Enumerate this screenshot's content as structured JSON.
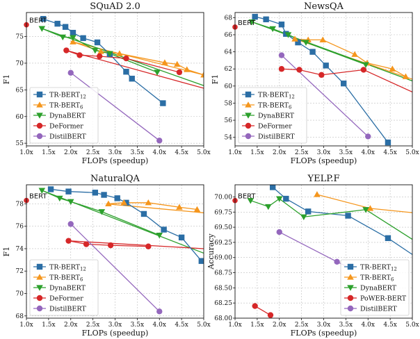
{
  "colors": {
    "blue": "#2b6ea5",
    "orange": "#f5961d",
    "green": "#2ca02c",
    "red": "#d62728",
    "purple": "#9467bd"
  },
  "chart_data": [
    {
      "type": "line",
      "title": "SQuAD 2.0",
      "xlabel": "FLOPs (speedup)",
      "ylabel": "F1",
      "xlim": [
        1.0,
        5.0
      ],
      "ylim": [
        54.5,
        79.5
      ],
      "xticks": [
        1.0,
        1.5,
        2.0,
        2.5,
        3.0,
        3.5,
        4.0,
        4.5,
        5.0
      ],
      "xtick_labels": [
        "1.0x",
        "1.5x",
        "2.0x",
        "2.5x",
        "3.0x",
        "3.5x",
        "4.0x",
        "4.5x",
        "5.0x"
      ],
      "yticks": [
        55,
        60,
        65,
        70,
        75
      ],
      "ytick_labels": [
        "55",
        "60",
        "65",
        "70",
        "75"
      ],
      "grid": true,
      "legend_position": "bottom-left",
      "reference": {
        "label": "BERT",
        "x": 1.0,
        "y": 77.2
      },
      "series": [
        {
          "name_main": "TR-BERT",
          "name_sub": "12",
          "color": "blue",
          "marker": "square",
          "x": [
            1.38,
            1.7,
            1.88,
            2.05,
            2.28,
            2.6,
            2.88,
            3.25,
            3.38,
            4.08
          ],
          "y": [
            78.3,
            77.4,
            76.8,
            75.7,
            74.7,
            73.9,
            71.7,
            68.4,
            67.1,
            62.5
          ]
        },
        {
          "name_main": "TR-BERT",
          "name_sub": "6",
          "color": "orange",
          "marker": "triangle",
          "x": [
            2.05,
            2.68,
            3.1,
            4.12,
            4.4,
            4.62,
            5.0
          ],
          "y": [
            74.0,
            72.2,
            71.8,
            70.1,
            69.8,
            68.8,
            67.8
          ]
        },
        {
          "name_main": "DynaBERT",
          "name_sub": "",
          "color": "green",
          "marker": "triangle-down",
          "x": [
            1.35,
            1.82,
            2.05,
            2.55,
            2.88,
            3.95
          ],
          "y": [
            76.5,
            74.9,
            74.8,
            72.4,
            71.8,
            68.3
          ]
        },
        {
          "name_main": "DeFormer",
          "name_sub": "",
          "color": "red",
          "marker": "circle",
          "x": [
            1.9,
            2.2,
            2.65,
            3.25,
            4.45
          ],
          "y": [
            72.4,
            71.5,
            71.3,
            70.9,
            68.3
          ]
        },
        {
          "name_main": "DistilBERT",
          "name_sub": "",
          "color": "purple",
          "marker": "circle",
          "x": [
            2.0,
            4.0
          ],
          "y": [
            68.2,
            55.5
          ]
        }
      ],
      "trend_lines": [
        {
          "color": "orange",
          "x": [
            2.0,
            5.0
          ],
          "y": [
            74.1,
            67.8
          ]
        },
        {
          "color": "green",
          "x": [
            1.35,
            5.0
          ],
          "y": [
            76.5,
            65.8
          ]
        },
        {
          "color": "red",
          "x": [
            1.9,
            5.0
          ],
          "y": [
            72.4,
            65.3
          ]
        }
      ]
    },
    {
      "type": "line",
      "title": "NewsQA",
      "xlabel": "FLOPs (speedup)",
      "ylabel": "F1",
      "xlim": [
        1.0,
        5.0
      ],
      "ylim": [
        53.0,
        68.6
      ],
      "xticks": [
        1.0,
        1.5,
        2.0,
        2.5,
        3.0,
        3.5,
        4.0,
        4.5,
        5.0
      ],
      "xtick_labels": [
        "1.0x",
        "1.5x",
        "2.0x",
        "2.5x",
        "3.0x",
        "3.5x",
        "4.0x",
        "4.5x",
        "5.0x"
      ],
      "yticks": [
        54,
        56,
        58,
        60,
        62,
        64,
        66,
        68
      ],
      "ytick_labels": [
        "54",
        "56",
        "58",
        "60",
        "62",
        "64",
        "66",
        "68"
      ],
      "grid": true,
      "legend_position": "bottom-left",
      "reference": {
        "label": "BERT",
        "x": 1.0,
        "y": 66.9
      },
      "series": [
        {
          "name_main": "TR-BERT",
          "name_sub": "12",
          "color": "blue",
          "marker": "square",
          "x": [
            1.45,
            1.7,
            2.05,
            2.15,
            2.42,
            2.75,
            3.05,
            3.45,
            4.45
          ],
          "y": [
            68.1,
            67.8,
            67.2,
            66.1,
            65.1,
            64.0,
            62.4,
            60.3,
            53.4
          ]
        },
        {
          "name_main": "TR-BERT",
          "name_sub": "6",
          "color": "orange",
          "marker": "triangle",
          "x": [
            2.35,
            2.65,
            2.98,
            3.7,
            3.98,
            4.55,
            4.85
          ],
          "y": [
            65.5,
            65.4,
            65.4,
            63.7,
            62.7,
            62.0,
            61.1
          ]
        },
        {
          "name_main": "DynaBERT",
          "name_sub": "",
          "color": "green",
          "marker": "triangle-down",
          "x": [
            1.38,
            1.85,
            2.2,
            2.6,
            3.95
          ],
          "y": [
            67.5,
            66.7,
            66.0,
            65.1,
            62.5
          ]
        },
        {
          "name_main": "DeFormer",
          "name_sub": "",
          "color": "red",
          "marker": "circle",
          "x": [
            2.05,
            2.45,
            2.95,
            3.9
          ],
          "y": [
            62.0,
            61.9,
            61.3,
            61.9
          ]
        },
        {
          "name_main": "DistilBERT",
          "name_sub": "",
          "color": "purple",
          "marker": "circle",
          "x": [
            2.05,
            4.0
          ],
          "y": [
            63.6,
            54.1
          ]
        }
      ],
      "trend_lines": [
        {
          "color": "orange",
          "x": [
            2.3,
            5.0
          ],
          "y": [
            65.6,
            60.8
          ]
        },
        {
          "color": "green",
          "x": [
            1.38,
            5.0
          ],
          "y": [
            67.5,
            60.6
          ]
        },
        {
          "color": "red",
          "x": [
            3.9,
            5.0
          ],
          "y": [
            61.9,
            59.3
          ]
        }
      ]
    },
    {
      "type": "line",
      "title": "NaturalQA",
      "xlabel": "FLOPs (speedup)",
      "ylabel": "F1",
      "xlim": [
        1.0,
        5.0
      ],
      "ylim": [
        67.8,
        79.7
      ],
      "xticks": [
        1.0,
        1.5,
        2.0,
        2.5,
        3.0,
        3.5,
        4.0,
        4.5,
        5.0
      ],
      "xtick_labels": [
        "1.0x",
        "1.5x",
        "2.0x",
        "2.5x",
        "3.0x",
        "3.5x",
        "4.0x",
        "4.5x",
        "5.0x"
      ],
      "yticks": [
        68,
        70,
        72,
        74,
        76,
        78
      ],
      "ytick_labels": [
        "68",
        "70",
        "72",
        "74",
        "76",
        "78"
      ],
      "grid": true,
      "legend_position": "bottom-left",
      "reference": {
        "label": "BERT",
        "x": 1.0,
        "y": 78.3
      },
      "series": [
        {
          "name_main": "TR-BERT",
          "name_sub": "12",
          "color": "blue",
          "marker": "square",
          "x": [
            1.55,
            1.95,
            2.55,
            2.75,
            3.05,
            3.25,
            3.65,
            4.1,
            4.5,
            4.95
          ],
          "y": [
            79.3,
            79.1,
            79.0,
            78.8,
            78.5,
            78.1,
            77.1,
            75.7,
            75.0,
            72.9
          ]
        },
        {
          "name_main": "TR-BERT",
          "name_sub": "6",
          "color": "orange",
          "marker": "triangle",
          "x": [
            2.85,
            3.2,
            3.75,
            4.45,
            4.85
          ],
          "y": [
            78.0,
            78.1,
            78.1,
            77.7,
            77.5
          ]
        },
        {
          "name_main": "DynaBERT",
          "name_sub": "",
          "color": "green",
          "marker": "triangle-down",
          "x": [
            1.35,
            1.75,
            2.0,
            2.7,
            4.0
          ],
          "y": [
            79.2,
            78.5,
            78.2,
            77.3,
            75.2
          ]
        },
        {
          "name_main": "DeFormer",
          "name_sub": "",
          "color": "red",
          "marker": "circle",
          "x": [
            1.95,
            2.35,
            2.9,
            3.75
          ],
          "y": [
            74.7,
            74.4,
            74.3,
            74.2
          ]
        },
        {
          "name_main": "DistilBERT",
          "name_sub": "",
          "color": "purple",
          "marker": "circle",
          "x": [
            2.0,
            4.0
          ],
          "y": [
            76.2,
            68.4
          ]
        }
      ],
      "trend_lines": [
        {
          "color": "orange",
          "x": [
            2.8,
            5.0
          ],
          "y": [
            78.0,
            77.2
          ]
        },
        {
          "color": "green",
          "x": [
            1.35,
            5.0
          ],
          "y": [
            79.2,
            73.6
          ]
        },
        {
          "color": "red",
          "x": [
            1.95,
            5.0
          ],
          "y": [
            74.7,
            74.0
          ]
        }
      ]
    },
    {
      "type": "line",
      "title": "YELP.F",
      "xlabel": "FLOPs (speedup)",
      "ylabel": "Accuracy",
      "xlim": [
        1.0,
        5.0
      ],
      "ylim": [
        68.0,
        70.2
      ],
      "xticks": [
        1.0,
        1.5,
        2.0,
        2.5,
        3.0,
        3.5,
        4.0,
        4.5,
        5.0
      ],
      "xtick_labels": [
        "1.0x",
        "1.5x",
        "2.0x",
        "2.5x",
        "3.0x",
        "3.5x",
        "4.0x",
        "4.5x",
        "5.0x"
      ],
      "yticks": [
        68.0,
        68.25,
        68.5,
        68.75,
        69.0,
        69.25,
        69.5,
        69.75,
        70.0
      ],
      "ytick_labels": [
        "68.00",
        "68.25",
        "68.50",
        "68.75",
        "69.00",
        "69.25",
        "69.50",
        "69.75",
        "70.00"
      ],
      "grid": true,
      "legend_position": "bottom-right",
      "reference": {
        "label": "BERT",
        "x": 1.0,
        "y": 69.94
      },
      "series": [
        {
          "name_main": "TR-BERT",
          "name_sub": "12",
          "color": "blue",
          "marker": "square",
          "x": [
            1.85,
            2.15,
            2.65,
            3.55,
            4.45
          ],
          "y": [
            70.16,
            69.97,
            69.76,
            69.69,
            69.32
          ]
        },
        {
          "name_main": "TR-BERT",
          "name_sub": "6",
          "color": "orange",
          "marker": "triangle",
          "x": [
            2.85,
            4.05
          ],
          "y": [
            70.04,
            69.81
          ]
        },
        {
          "name_main": "DynaBERT",
          "name_sub": "",
          "color": "green",
          "marker": "triangle-down",
          "x": [
            1.35,
            1.75,
            2.0,
            2.55,
            3.95
          ],
          "y": [
            69.94,
            69.84,
            69.97,
            69.67,
            69.79
          ]
        },
        {
          "name_main": "PoWER-BERT",
          "name_sub": "",
          "color": "red",
          "marker": "circle",
          "x": [
            1.45,
            1.8
          ],
          "y": [
            68.2,
            68.05
          ]
        },
        {
          "name_main": "DistilBERT",
          "name_sub": "",
          "color": "purple",
          "marker": "circle",
          "x": [
            2.0,
            3.3
          ],
          "y": [
            69.42,
            68.93
          ]
        }
      ],
      "trend_lines": [
        {
          "color": "blue",
          "x": [
            4.45,
            5.0
          ],
          "y": [
            69.32,
            69.05
          ]
        },
        {
          "color": "orange",
          "x": [
            4.05,
            5.0
          ],
          "y": [
            69.81,
            69.74
          ]
        },
        {
          "color": "green",
          "x": [
            3.95,
            5.0
          ],
          "y": [
            69.79,
            69.3
          ]
        },
        {
          "color": "purple",
          "x": [
            3.3,
            3.5
          ],
          "y": [
            68.93,
            68.86
          ]
        }
      ]
    }
  ]
}
